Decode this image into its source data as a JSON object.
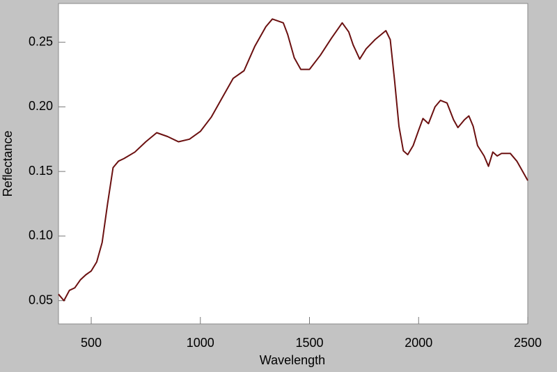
{
  "chart_data": {
    "type": "line",
    "x_label": "Wavelength",
    "y_label": "Reflectance",
    "x": [
      350,
      375,
      400,
      425,
      450,
      475,
      500,
      525,
      550,
      575,
      600,
      625,
      650,
      700,
      750,
      800,
      850,
      900,
      950,
      1000,
      1050,
      1100,
      1150,
      1200,
      1250,
      1300,
      1330,
      1380,
      1400,
      1430,
      1460,
      1500,
      1550,
      1600,
      1650,
      1680,
      1700,
      1730,
      1760,
      1800,
      1850,
      1870,
      1890,
      1910,
      1930,
      1950,
      1975,
      2000,
      2020,
      2045,
      2075,
      2100,
      2130,
      2160,
      2180,
      2210,
      2230,
      2250,
      2270,
      2300,
      2320,
      2340,
      2360,
      2380,
      2420,
      2450,
      2470,
      2500
    ],
    "series": [
      {
        "color": "#6b1010",
        "values": [
          0.055,
          0.05,
          0.058,
          0.06,
          0.066,
          0.07,
          0.073,
          0.08,
          0.095,
          0.125,
          0.153,
          0.158,
          0.16,
          0.165,
          0.173,
          0.18,
          0.177,
          0.173,
          0.175,
          0.181,
          0.192,
          0.207,
          0.222,
          0.228,
          0.247,
          0.262,
          0.268,
          0.265,
          0.256,
          0.238,
          0.229,
          0.229,
          0.24,
          0.253,
          0.265,
          0.258,
          0.248,
          0.237,
          0.245,
          0.252,
          0.259,
          0.252,
          0.22,
          0.185,
          0.166,
          0.163,
          0.17,
          0.182,
          0.191,
          0.187,
          0.2,
          0.205,
          0.203,
          0.19,
          0.184,
          0.19,
          0.193,
          0.185,
          0.17,
          0.162,
          0.154,
          0.165,
          0.162,
          0.164,
          0.164,
          0.158,
          0.152,
          0.143
        ]
      }
    ],
    "xlim": [
      350,
      2500
    ],
    "ylim": [
      0.032,
      0.28
    ],
    "xticks": [
      500,
      1000,
      1500,
      2000,
      2500
    ],
    "yticks": [
      0.05,
      {
        "value": 0.1,
        "label": "0.10"
      },
      0.15,
      {
        "value": 0.2,
        "label": "0.20"
      },
      0.25
    ]
  }
}
